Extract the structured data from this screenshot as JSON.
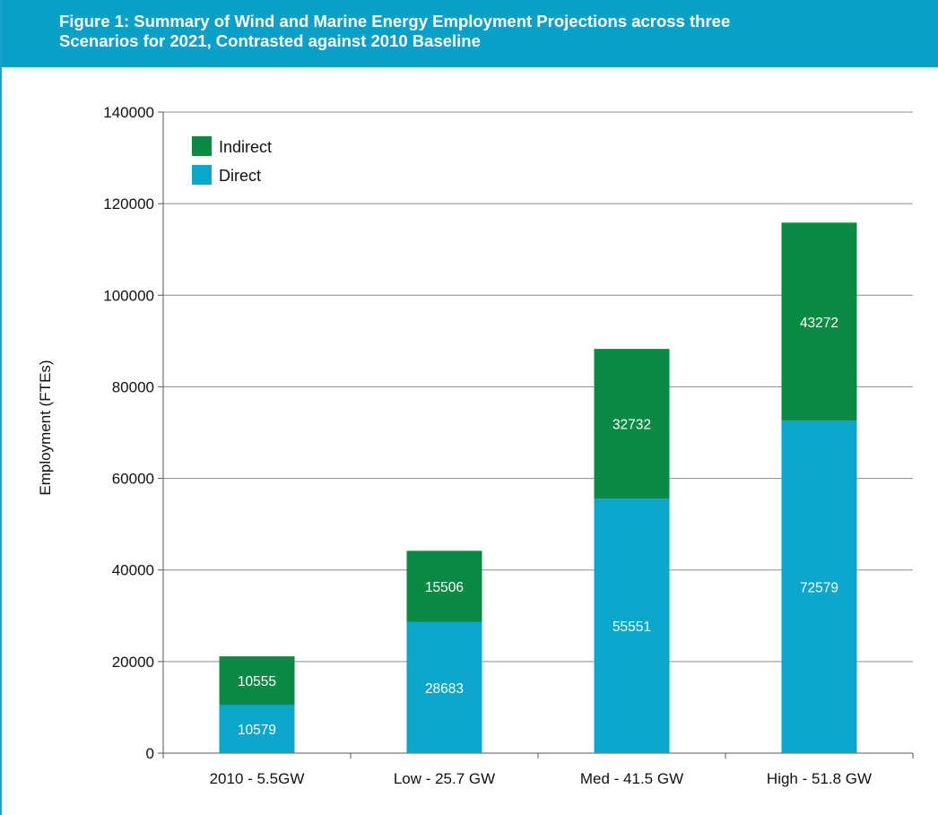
{
  "chart_data": {
    "type": "bar",
    "stacked": true,
    "title": "Figure 1: Summary of Wind and Marine Energy Employment Projections across three Scenarios for 2021, Contrasted against 2010 Baseline",
    "title_lines": [
      "Figure 1: Summary of Wind and Marine Energy Employment Projections across three",
      "Scenarios for 2021, Contrasted against 2010 Baseline"
    ],
    "xlabel": "",
    "ylabel": "Employment (FTEs)",
    "ylim": [
      0,
      140000
    ],
    "yticks": [
      0,
      20000,
      40000,
      60000,
      80000,
      100000,
      120000,
      140000
    ],
    "ytick_labels": [
      "0",
      "20000",
      "40000",
      "60000",
      "80000",
      "100000",
      "120000",
      "140000"
    ],
    "categories": [
      "2010 - 5.5GW",
      "Low - 25.7 GW",
      "Med - 41.5 GW",
      "High - 51.8 GW"
    ],
    "series": [
      {
        "name": "Direct",
        "color": "#0aa6cc",
        "values": [
          10579,
          28683,
          55551,
          72579
        ]
      },
      {
        "name": "Indirect",
        "color": "#0a8a43",
        "values": [
          10555,
          15506,
          32732,
          43272
        ]
      }
    ],
    "legend": {
      "placement": "top-left",
      "order": [
        "Indirect",
        "Direct"
      ]
    },
    "grid": true
  }
}
